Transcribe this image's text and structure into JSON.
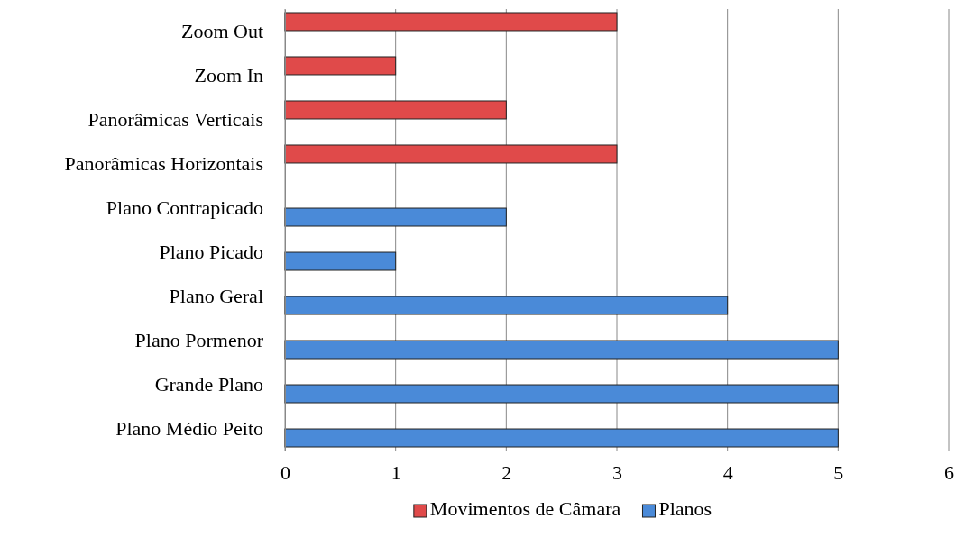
{
  "chart_data": {
    "type": "bar",
    "orientation": "horizontal",
    "categories": [
      "Zoom Out",
      "Zoom In",
      "Panorâmicas Verticais",
      "Panorâmicas Horizontais",
      "Plano Contrapicado",
      "Plano Picado",
      "Plano Geral",
      "Plano Pormenor",
      "Grande Plano",
      "Plano Médio Peito"
    ],
    "series": [
      {
        "name": "Movimentos de Câmara",
        "color": "#e04a4a",
        "values": [
          3,
          1,
          2,
          3,
          0,
          0,
          0,
          0,
          0,
          0
        ]
      },
      {
        "name": "Planos",
        "color": "#4a8ad8",
        "values": [
          0,
          0,
          0,
          0,
          2,
          1,
          4,
          5,
          5,
          5
        ]
      }
    ],
    "xlim": [
      0,
      6
    ],
    "xticks": [
      0,
      1,
      2,
      3,
      4,
      5,
      6
    ],
    "grid": "x",
    "legend": "bottom"
  }
}
